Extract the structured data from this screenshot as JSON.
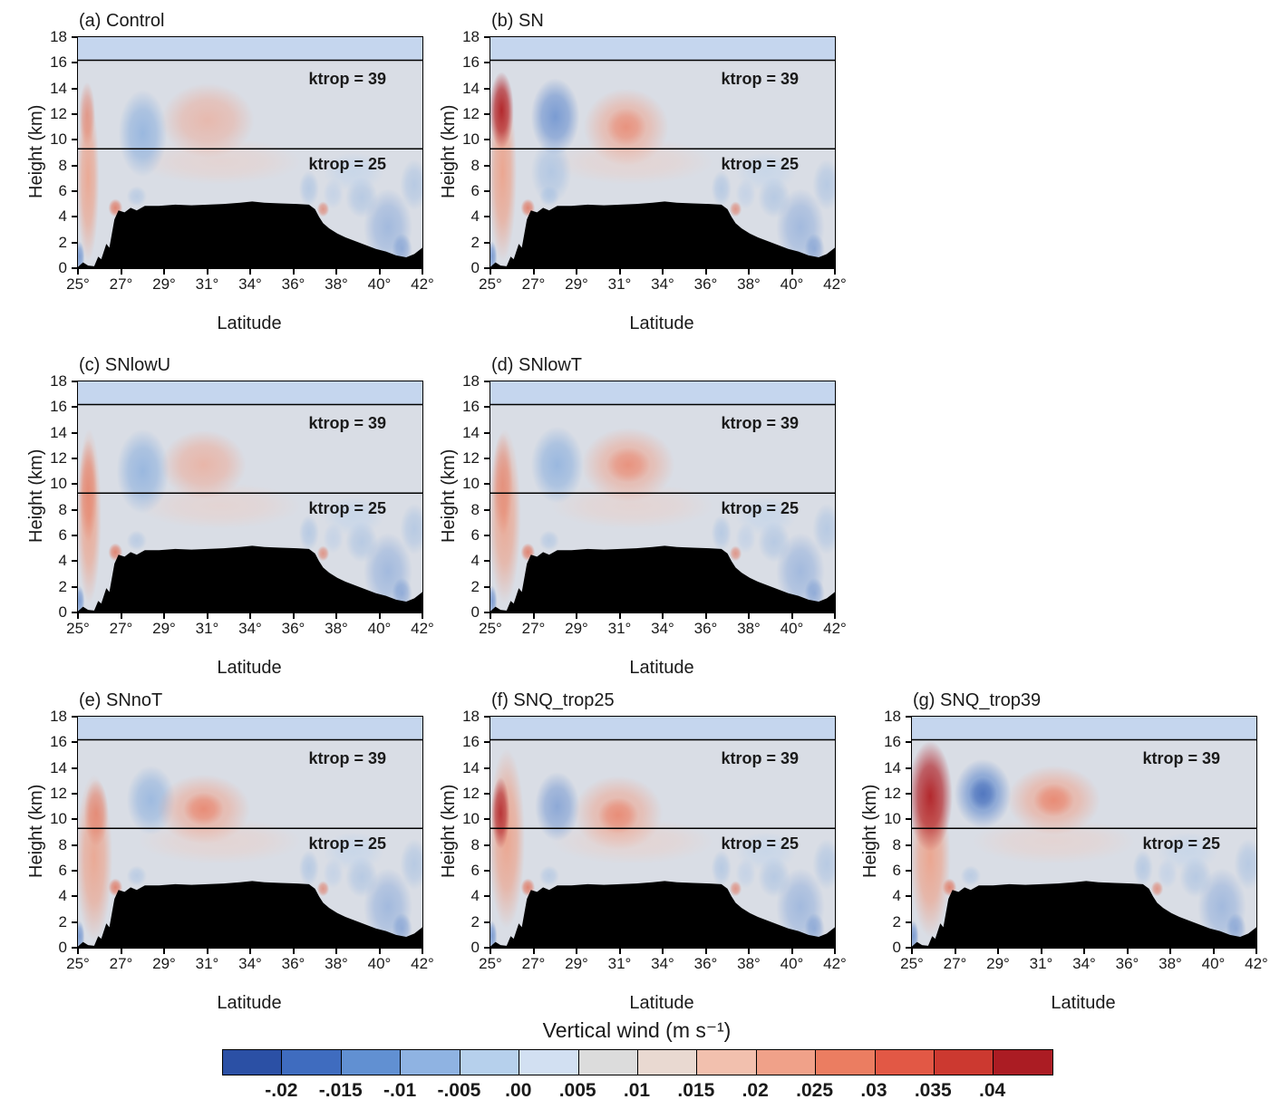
{
  "chart_data": {
    "type": "heatmap",
    "description": "Seven latitude-height filled-contour cross sections of vertical wind for different model experiments, with tropopause reference lines and black terrain silhouette.",
    "x": {
      "label": "Latitude",
      "range_deg": [
        25,
        42
      ],
      "tick_labels": [
        "25°",
        "27°",
        "29°",
        "31°",
        "34°",
        "36°",
        "38°",
        "40°",
        "42°"
      ]
    },
    "y": {
      "label": "Height (km)",
      "range_km": [
        0,
        18
      ],
      "tick_labels": [
        "0",
        "2",
        "4",
        "6",
        "8",
        "10",
        "12",
        "14",
        "16",
        "18"
      ]
    },
    "colorbar": {
      "title": "Vertical wind (m s⁻¹)",
      "boundary_labels": [
        "-.02",
        "-.015",
        "-.01",
        "-.005",
        ".00",
        ".005",
        ".01",
        ".015",
        ".02",
        ".025",
        ".03",
        ".035",
        ".04"
      ],
      "levels": [
        -0.02,
        -0.015,
        -0.01,
        -0.005,
        0,
        0.005,
        0.01,
        0.015,
        0.02,
        0.025,
        0.03,
        0.035,
        0.04
      ],
      "colors": [
        "#2b50a5",
        "#3f6cbf",
        "#6190d2",
        "#8fb3e2",
        "#b6d0ec",
        "#d2e0f2",
        "#dcdcdc",
        "#e9d9d1",
        "#f2c0ae",
        "#f0a189",
        "#eb7d61",
        "#e25845",
        "#cc3930",
        "#ab1c23"
      ]
    },
    "ktrop_lines": [
      {
        "label": "ktrop = 39",
        "height_km": 16.2
      },
      {
        "label": "ktrop = 25",
        "height_km": 9.3
      }
    ],
    "field_colors": {
      "background": "#d9dde5",
      "stratosphere_band": "#c5d6ee"
    },
    "terrain_lat_km": [
      [
        25.0,
        0.1
      ],
      [
        25.25,
        0.45
      ],
      [
        25.5,
        0.2
      ],
      [
        25.8,
        0.15
      ],
      [
        26.0,
        0.9
      ],
      [
        26.15,
        0.7
      ],
      [
        26.4,
        1.9
      ],
      [
        26.55,
        1.6
      ],
      [
        26.8,
        3.8
      ],
      [
        27.0,
        4.5
      ],
      [
        27.3,
        4.35
      ],
      [
        27.6,
        4.7
      ],
      [
        27.9,
        4.5
      ],
      [
        28.3,
        4.85
      ],
      [
        29.0,
        4.85
      ],
      [
        29.8,
        4.95
      ],
      [
        30.6,
        4.9
      ],
      [
        31.4,
        4.95
      ],
      [
        32.2,
        5.0
      ],
      [
        33.0,
        5.1
      ],
      [
        33.6,
        5.2
      ],
      [
        34.2,
        5.1
      ],
      [
        35.0,
        5.05
      ],
      [
        35.8,
        5.0
      ],
      [
        36.4,
        4.95
      ],
      [
        36.7,
        4.6
      ],
      [
        36.9,
        4.0
      ],
      [
        37.1,
        3.5
      ],
      [
        37.4,
        3.1
      ],
      [
        37.8,
        2.7
      ],
      [
        38.2,
        2.4
      ],
      [
        38.7,
        2.1
      ],
      [
        39.2,
        1.8
      ],
      [
        39.7,
        1.5
      ],
      [
        40.2,
        1.3
      ],
      [
        40.7,
        1.0
      ],
      [
        41.2,
        0.85
      ],
      [
        41.6,
        1.1
      ],
      [
        42.0,
        1.6
      ]
    ],
    "common_features": [
      {
        "lat": 25.08,
        "km": 0.9,
        "rlat": 0.25,
        "rkm": 1.2,
        "w": -0.01,
        "color": "#5b86cc",
        "alpha": 0.7
      },
      {
        "lat": 27.9,
        "km": 5.6,
        "rlat": 0.5,
        "rkm": 0.8,
        "w": -0.005,
        "color": "#8fb3e0",
        "alpha": 0.4
      },
      {
        "lat": 32.0,
        "km": 8.3,
        "rlat": 4.0,
        "rkm": 1.8,
        "w": 0.007,
        "color": "#f3c7b8",
        "alpha": 0.4
      },
      {
        "lat": 26.85,
        "km": 4.7,
        "rlat": 0.35,
        "rkm": 0.7,
        "w": 0.02,
        "color": "#e2684d",
        "alpha": 0.75
      },
      {
        "lat": 37.1,
        "km": 4.6,
        "rlat": 0.3,
        "rkm": 0.6,
        "w": 0.02,
        "color": "#e2684d",
        "alpha": 0.6
      },
      {
        "lat": 36.4,
        "km": 6.2,
        "rlat": 0.5,
        "rkm": 1.4,
        "w": -0.007,
        "color": "#8fb3e0",
        "alpha": 0.45
      },
      {
        "lat": 37.6,
        "km": 5.8,
        "rlat": 0.5,
        "rkm": 1.2,
        "w": -0.005,
        "color": "#a9c4e8",
        "alpha": 0.4
      },
      {
        "lat": 39.0,
        "km": 5.5,
        "rlat": 0.8,
        "rkm": 1.6,
        "w": -0.007,
        "color": "#8fb3e0",
        "alpha": 0.45
      },
      {
        "lat": 40.3,
        "km": 3.2,
        "rlat": 1.2,
        "rkm": 3.0,
        "w": -0.01,
        "color": "#6d97d6",
        "alpha": 0.5
      },
      {
        "lat": 41.6,
        "km": 6.5,
        "rlat": 0.7,
        "rkm": 2.0,
        "w": -0.007,
        "color": "#8fb3e0",
        "alpha": 0.45
      },
      {
        "lat": 41.0,
        "km": 1.5,
        "rlat": 0.5,
        "rkm": 1.2,
        "w": -0.012,
        "color": "#5b86cc",
        "alpha": 0.5
      },
      {
        "lat": 38.6,
        "km": 7.5,
        "rlat": 1.5,
        "rkm": 1.5,
        "w": -0.005,
        "color": "#b8d0ec",
        "alpha": 0.5
      }
    ],
    "panels": [
      {
        "id": "a",
        "label": "(a) Control",
        "features": [
          {
            "lat": 25.5,
            "km": 7.0,
            "rlat": 0.55,
            "rkm": 6.5,
            "w": 0.02,
            "color": "#ee9d82",
            "alpha": 0.8
          },
          {
            "lat": 25.45,
            "km": 12.0,
            "rlat": 0.4,
            "rkm": 2.5,
            "w": 0.03,
            "color": "#e2684d",
            "alpha": 0.5
          },
          {
            "lat": 28.2,
            "km": 10.5,
            "rlat": 1.2,
            "rkm": 3.4,
            "w": -0.01,
            "color": "#7fa8dc",
            "alpha": 0.7
          },
          {
            "lat": 31.4,
            "km": 11.5,
            "rlat": 2.3,
            "rkm": 2.9,
            "w": 0.012,
            "color": "#f0a189",
            "alpha": 0.6
          }
        ]
      },
      {
        "id": "b",
        "label": "(b) SN",
        "features": [
          {
            "lat": 25.6,
            "km": 7.5,
            "rlat": 0.7,
            "rkm": 7.0,
            "w": 0.025,
            "color": "#ee9d82",
            "alpha": 0.85
          },
          {
            "lat": 25.55,
            "km": 12.3,
            "rlat": 0.6,
            "rkm": 3.0,
            "w": 0.045,
            "color": "#b02025",
            "alpha": 0.95
          },
          {
            "lat": 28.2,
            "km": 11.8,
            "rlat": 1.2,
            "rkm": 3.0,
            "w": -0.015,
            "color": "#5b86cc",
            "alpha": 0.75
          },
          {
            "lat": 28.0,
            "km": 7.5,
            "rlat": 1.0,
            "rkm": 2.5,
            "w": -0.008,
            "color": "#8fb3e0",
            "alpha": 0.5
          },
          {
            "lat": 31.7,
            "km": 11.0,
            "rlat": 2.1,
            "rkm": 3.0,
            "w": 0.015,
            "color": "#f0a189",
            "alpha": 0.7
          },
          {
            "lat": 31.7,
            "km": 11.0,
            "rlat": 1.0,
            "rkm": 1.5,
            "w": 0.02,
            "color": "#e8745a",
            "alpha": 0.5
          }
        ]
      },
      {
        "id": "c",
        "label": "(c) SNlowU",
        "features": [
          {
            "lat": 25.55,
            "km": 7.5,
            "rlat": 0.6,
            "rkm": 6.8,
            "w": 0.02,
            "color": "#ee9d82",
            "alpha": 0.8
          },
          {
            "lat": 25.5,
            "km": 9.5,
            "rlat": 0.45,
            "rkm": 4.0,
            "w": 0.03,
            "color": "#e2684d",
            "alpha": 0.5
          },
          {
            "lat": 28.2,
            "km": 11.0,
            "rlat": 1.3,
            "rkm": 3.3,
            "w": -0.01,
            "color": "#7fa8dc",
            "alpha": 0.7
          },
          {
            "lat": 31.2,
            "km": 11.5,
            "rlat": 2.1,
            "rkm": 2.7,
            "w": 0.012,
            "color": "#f0a189",
            "alpha": 0.65
          }
        ]
      },
      {
        "id": "d",
        "label": "(d) SNlowT",
        "features": [
          {
            "lat": 25.7,
            "km": 7.5,
            "rlat": 0.8,
            "rkm": 6.8,
            "w": 0.02,
            "color": "#ee9d82",
            "alpha": 0.8
          },
          {
            "lat": 25.6,
            "km": 10.0,
            "rlat": 0.5,
            "rkm": 4.0,
            "w": 0.03,
            "color": "#e2684d",
            "alpha": 0.45
          },
          {
            "lat": 28.3,
            "km": 11.5,
            "rlat": 1.3,
            "rkm": 3.0,
            "w": -0.01,
            "color": "#7fa8dc",
            "alpha": 0.7
          },
          {
            "lat": 31.8,
            "km": 11.5,
            "rlat": 2.3,
            "rkm": 2.9,
            "w": 0.015,
            "color": "#f0a189",
            "alpha": 0.7
          },
          {
            "lat": 31.8,
            "km": 11.5,
            "rlat": 1.1,
            "rkm": 1.4,
            "w": 0.018,
            "color": "#e8745a",
            "alpha": 0.5
          }
        ]
      },
      {
        "id": "e",
        "label": "(e) SNnoT",
        "features": [
          {
            "lat": 25.8,
            "km": 7.0,
            "rlat": 0.9,
            "rkm": 6.5,
            "w": 0.02,
            "color": "#ee9d82",
            "alpha": 0.8
          },
          {
            "lat": 25.9,
            "km": 10.5,
            "rlat": 0.6,
            "rkm": 2.6,
            "w": 0.028,
            "color": "#e2684d",
            "alpha": 0.55
          },
          {
            "lat": 28.6,
            "km": 11.5,
            "rlat": 1.2,
            "rkm": 2.7,
            "w": -0.01,
            "color": "#7fa8dc",
            "alpha": 0.65
          },
          {
            "lat": 31.2,
            "km": 10.8,
            "rlat": 2.3,
            "rkm": 2.7,
            "w": 0.015,
            "color": "#f0a189",
            "alpha": 0.7
          },
          {
            "lat": 31.2,
            "km": 10.8,
            "rlat": 1.0,
            "rkm": 1.3,
            "w": 0.02,
            "color": "#e8745a",
            "alpha": 0.6
          }
        ]
      },
      {
        "id": "f",
        "label": "(f) SNQ_trop25",
        "features": [
          {
            "lat": 25.8,
            "km": 8.5,
            "rlat": 0.9,
            "rkm": 7.0,
            "w": 0.02,
            "color": "#ee9d82",
            "alpha": 0.85
          },
          {
            "lat": 25.5,
            "km": 10.5,
            "rlat": 0.45,
            "rkm": 2.8,
            "w": 0.045,
            "color": "#b02025",
            "alpha": 0.85
          },
          {
            "lat": 28.3,
            "km": 11.0,
            "rlat": 1.1,
            "rkm": 2.7,
            "w": -0.012,
            "color": "#5b86cc",
            "alpha": 0.6
          },
          {
            "lat": 31.3,
            "km": 10.5,
            "rlat": 2.2,
            "rkm": 2.9,
            "w": 0.015,
            "color": "#f0a189",
            "alpha": 0.7
          },
          {
            "lat": 31.3,
            "km": 10.3,
            "rlat": 1.0,
            "rkm": 1.4,
            "w": 0.02,
            "color": "#e8745a",
            "alpha": 0.6
          }
        ]
      },
      {
        "id": "g",
        "label": "(g) SNQ_trop39",
        "features": [
          {
            "lat": 25.9,
            "km": 7.0,
            "rlat": 1.0,
            "rkm": 6.2,
            "w": 0.025,
            "color": "#ee9d82",
            "alpha": 0.85
          },
          {
            "lat": 25.9,
            "km": 11.8,
            "rlat": 1.1,
            "rkm": 4.3,
            "w": 0.045,
            "color": "#b02025",
            "alpha": 0.95
          },
          {
            "lat": 28.5,
            "km": 12.0,
            "rlat": 1.4,
            "rkm": 2.7,
            "w": -0.015,
            "color": "#5b86cc",
            "alpha": 0.8
          },
          {
            "lat": 28.5,
            "km": 12.0,
            "rlat": 0.7,
            "rkm": 1.3,
            "w": -0.02,
            "color": "#3c63b4",
            "alpha": 0.6
          },
          {
            "lat": 32.0,
            "km": 11.5,
            "rlat": 2.3,
            "rkm": 2.7,
            "w": 0.015,
            "color": "#f0a189",
            "alpha": 0.75
          },
          {
            "lat": 32.0,
            "km": 11.5,
            "rlat": 1.0,
            "rkm": 1.3,
            "w": 0.02,
            "color": "#e8745a",
            "alpha": 0.6
          }
        ]
      }
    ]
  }
}
